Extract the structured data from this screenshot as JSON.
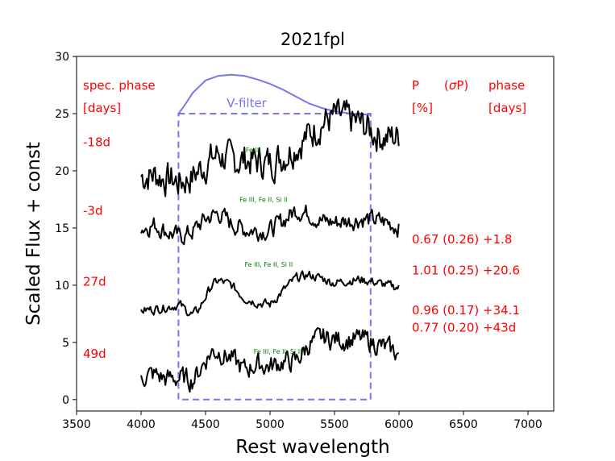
{
  "chart_data": {
    "type": "line",
    "title": "2021fpl",
    "xlabel": "Rest wavelength",
    "ylabel": "Scaled Flux + const",
    "xlim": [
      3500,
      7200
    ],
    "ylim": [
      -1,
      30
    ],
    "xticks": [
      3500,
      4000,
      4500,
      5000,
      5500,
      6000,
      6500,
      7000
    ],
    "yticks": [
      0,
      5,
      10,
      15,
      20,
      25,
      30
    ],
    "grid": false,
    "colors": {
      "spectrum": "#000000",
      "filter": "#7777ee",
      "annotation": "#ff0000",
      "line_id": "#008000"
    },
    "filter_box": {
      "x_range": [
        4290,
        5780
      ],
      "y_range": [
        0,
        25
      ]
    },
    "filter_curve": {
      "label": "V-filter",
      "x": [
        4290,
        4330,
        4400,
        4500,
        4600,
        4700,
        4800,
        4900,
        5000,
        5100,
        5200,
        5300,
        5400,
        5500,
        5600,
        5700,
        5780
      ],
      "y": [
        25.0,
        25.6,
        26.8,
        27.9,
        28.3,
        28.4,
        28.3,
        28.0,
        27.6,
        27.1,
        26.5,
        25.9,
        25.5,
        25.2,
        25.05,
        24.95,
        24.9
      ]
    },
    "series": [
      {
        "name": "-18d",
        "line_id": "Fe III",
        "line_id_pos": [
          4870,
          21.6
        ],
        "x": [
          4000,
          4100,
          4200,
          4300,
          4400,
          4500,
          4600,
          4700,
          4800,
          4900,
          5000,
          5100,
          5200,
          5300,
          5400,
          5500,
          5600,
          5700,
          5800,
          5900,
          6000
        ],
        "y": [
          19.5,
          19.7,
          19.3,
          19.0,
          19.5,
          20.6,
          21.5,
          20.8,
          21.0,
          20.8,
          20.7,
          21.3,
          22.2,
          23.1,
          24.2,
          24.7,
          24.5,
          24.1,
          23.4,
          22.9,
          23.0
        ]
      },
      {
        "name": "-3d",
        "line_id": "Fe III, Fe II, Si II",
        "line_id_pos": [
          4950,
          17.3
        ],
        "x": [
          4000,
          4100,
          4200,
          4300,
          4400,
          4500,
          4600,
          4700,
          4800,
          4900,
          5000,
          5100,
          5200,
          5300,
          5400,
          5500,
          5600,
          5700,
          5800,
          5900,
          6000
        ],
        "y": [
          15.0,
          15.3,
          14.7,
          14.2,
          14.7,
          15.8,
          16.3,
          15.4,
          14.9,
          14.8,
          14.8,
          15.6,
          16.6,
          16.3,
          15.6,
          15.5,
          15.6,
          15.8,
          15.7,
          15.5,
          15.1
        ]
      },
      {
        "name": "27d",
        "line_id": "Fe III, Fe II, Si II",
        "line_id_pos": [
          4990,
          11.6
        ],
        "x": [
          4000,
          4100,
          4200,
          4300,
          4350,
          4400,
          4450,
          4500,
          4550,
          4600,
          4700,
          4800,
          4900,
          5000,
          5100,
          5200,
          5300,
          5400,
          5500,
          5600,
          5700,
          5800,
          5900,
          6000
        ],
        "y": [
          7.8,
          7.9,
          8.1,
          8.3,
          7.8,
          7.4,
          7.9,
          9.0,
          10.0,
          10.4,
          10.0,
          8.9,
          8.5,
          8.3,
          9.5,
          10.6,
          10.9,
          10.6,
          10.2,
          10.4,
          10.5,
          10.3,
          10.0,
          9.8
        ]
      },
      {
        "name": "49d",
        "line_id": "Fe III, Fe II, Si II",
        "line_id_pos": [
          5060,
          4.0
        ],
        "x": [
          4000,
          4100,
          4200,
          4300,
          4400,
          4450,
          4500,
          4550,
          4600,
          4700,
          4800,
          4900,
          5000,
          5100,
          5200,
          5300,
          5400,
          5500,
          5600,
          5700,
          5800,
          5900,
          6000
        ],
        "y": [
          2.0,
          2.2,
          1.8,
          1.9,
          1.7,
          2.5,
          3.5,
          4.2,
          4.2,
          3.6,
          2.6,
          3.1,
          2.9,
          3.3,
          3.3,
          4.8,
          5.4,
          5.3,
          5.2,
          5.3,
          5.0,
          4.5,
          4.0
        ]
      }
    ],
    "annotations": {
      "left_header": [
        "spec. phase",
        "[days]"
      ],
      "right_header_p": [
        "P",
        "[%]"
      ],
      "right_header_sigma_prefix": "(",
      "right_header_sigma_symbol": "σ",
      "right_header_sigma_suffix": "P)",
      "right_header_phase": [
        "phase",
        "[days]"
      ],
      "left_labels": [
        {
          "text": "-18d",
          "y": 22.5
        },
        {
          "text": "-3d",
          "y": 16.5
        },
        {
          "text": "27d",
          "y": 10.3
        },
        {
          "text": "49d",
          "y": 4.0
        }
      ],
      "right_labels": [
        {
          "text": "0.67 (0.26) +1.8",
          "y": 14.0
        },
        {
          "text": "1.01 (0.25) +20.6",
          "y": 11.3
        },
        {
          "text": "0.96 (0.17) +34.1",
          "y": 7.8
        },
        {
          "text": "0.77 (0.20) +43d",
          "y": 6.3
        }
      ]
    }
  }
}
